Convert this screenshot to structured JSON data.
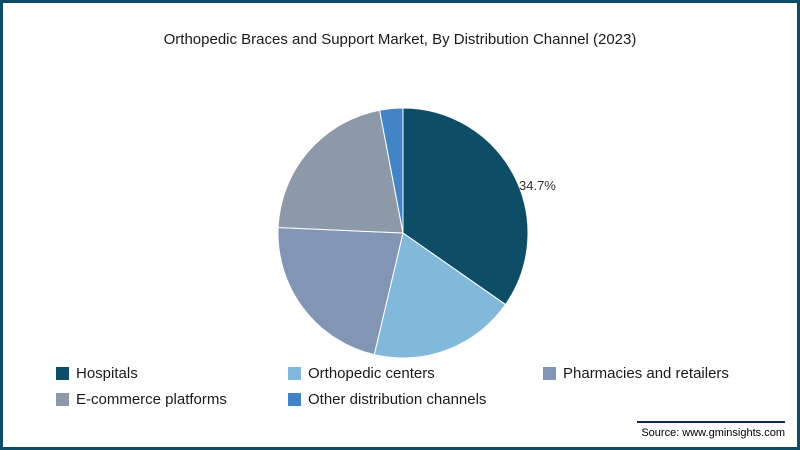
{
  "title": "Orthopedic Braces and Support Market, By Distribution Channel (2023)",
  "frame": {
    "border_color": "#0d4e66",
    "background": "#ffffff"
  },
  "chart_data": {
    "type": "pie",
    "title": "Orthopedic Braces and Support Market, By Distribution Channel (2023)",
    "start_angle_deg": 0,
    "direction": "clockwise",
    "legend_position": "bottom",
    "slices": [
      {
        "label": "Hospitals",
        "value": 34.7,
        "color": "#0d4e66"
      },
      {
        "label": "Orthopedic centers",
        "value": 19.0,
        "color": "#82b8d9"
      },
      {
        "label": "Pharmacies and retailers",
        "value": 22.0,
        "color": "#8295b5"
      },
      {
        "label": "E-commerce platforms",
        "value": 21.3,
        "color": "#8d99a9"
      },
      {
        "label": "Other distribution channels",
        "value": 3.0,
        "color": "#4285c7"
      }
    ],
    "data_label": {
      "slice": "Hospitals",
      "text": "34.7%"
    }
  },
  "source": {
    "text": "Source: www.gminsights.com"
  }
}
